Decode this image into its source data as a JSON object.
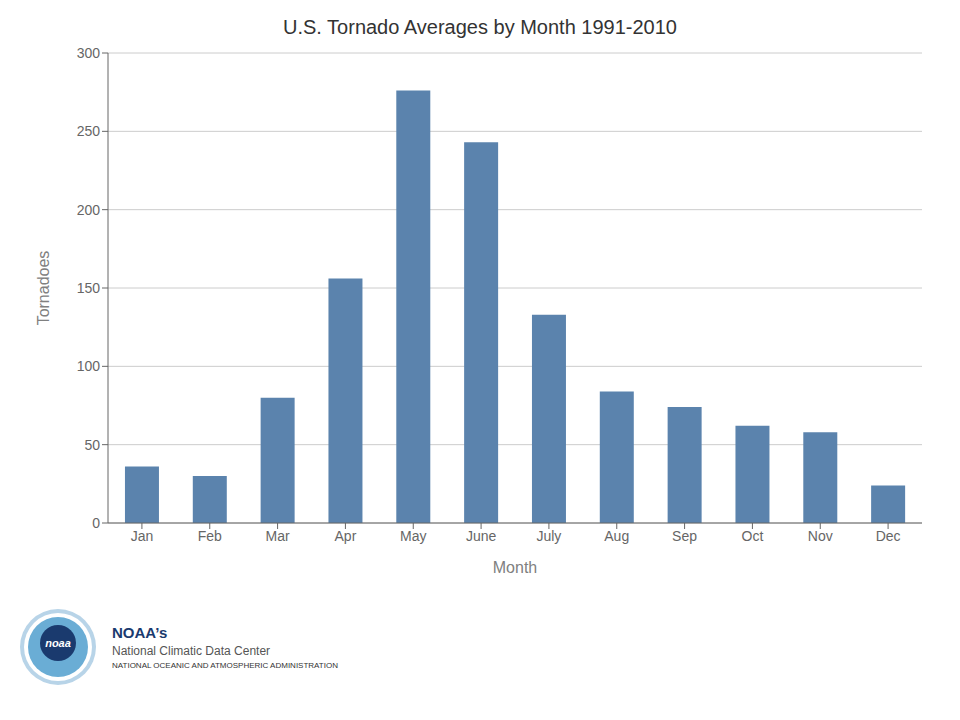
{
  "chart_data": {
    "type": "bar",
    "title": "U.S. Tornado Averages by Month 1991-2010",
    "x_label": "Month",
    "y_label": "Tornadoes",
    "categories": [
      "Jan",
      "Feb",
      "Mar",
      "Apr",
      "May",
      "June",
      "July",
      "Aug",
      "Sep",
      "Oct",
      "Nov",
      "Dec"
    ],
    "values": [
      36,
      30,
      80,
      156,
      276,
      243,
      133,
      84,
      74,
      62,
      58,
      24
    ],
    "color": "#5b83ad",
    "ylim": [
      0,
      300
    ],
    "yticks": [
      0,
      50,
      100,
      150,
      200,
      250,
      300
    ],
    "grid": true,
    "annotations": [
      "noaa",
      "NATIONAL OCEANIC AND ATMOSPHERIC ADMINISTRATION",
      "NOAA’s",
      "National Climatic Data Center"
    ]
  }
}
